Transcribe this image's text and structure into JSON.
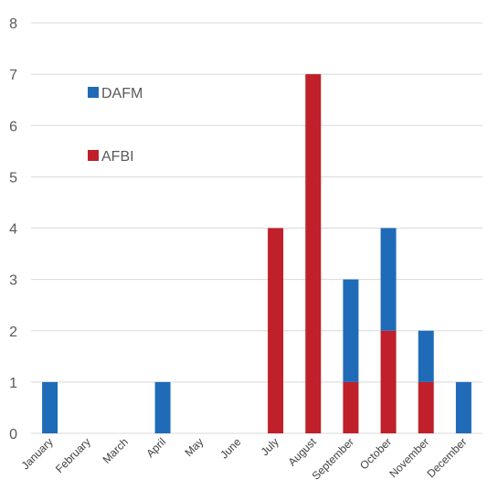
{
  "chart_data": {
    "type": "bar",
    "stacked": true,
    "categories": [
      "January",
      "February",
      "March",
      "April",
      "May",
      "June",
      "July",
      "August",
      "September",
      "October",
      "November",
      "December"
    ],
    "series": [
      {
        "name": "AFBI",
        "color": "#c0202a",
        "values": [
          0,
          0,
          0,
          0,
          0,
          0,
          4,
          7,
          1,
          2,
          1,
          0
        ]
      },
      {
        "name": "DAFM",
        "color": "#1f6bb8",
        "values": [
          1,
          0,
          0,
          1,
          0,
          0,
          0,
          0,
          2,
          2,
          1,
          1
        ]
      }
    ],
    "ylim": [
      0,
      8
    ],
    "yticks": [
      "0",
      "1",
      "2",
      "3",
      "4",
      "5",
      "6",
      "7",
      "8"
    ],
    "grid": true,
    "legend": {
      "placement": "top-left",
      "order": [
        "DAFM",
        "AFBI"
      ]
    }
  }
}
